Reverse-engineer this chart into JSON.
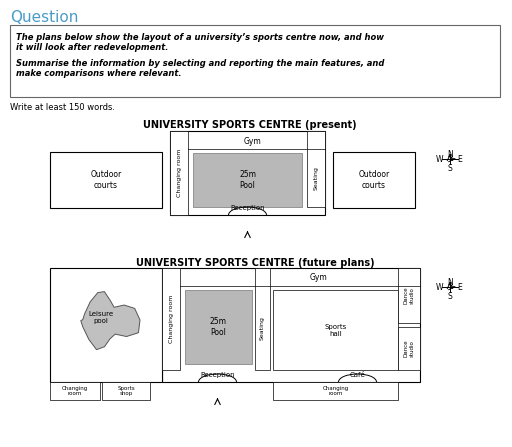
{
  "title": "Question",
  "title_color": "#4a9cc7",
  "box_text_line1": "The plans below show the layout of a university’s sports centre now, and how",
  "box_text_line2": "it will look after redevelopment.",
  "box_text_line3": "Summarise the information by selecting and reporting the main features, and",
  "box_text_line4": "make comparisons where relevant.",
  "write_text": "Write at least 150 words.",
  "map1_title": "UNIVERSITY SPORTS CENTRE (present)",
  "map2_title": "UNIVERSITY SPORTS CENTRE (future plans)",
  "bg_color": "#ffffff"
}
